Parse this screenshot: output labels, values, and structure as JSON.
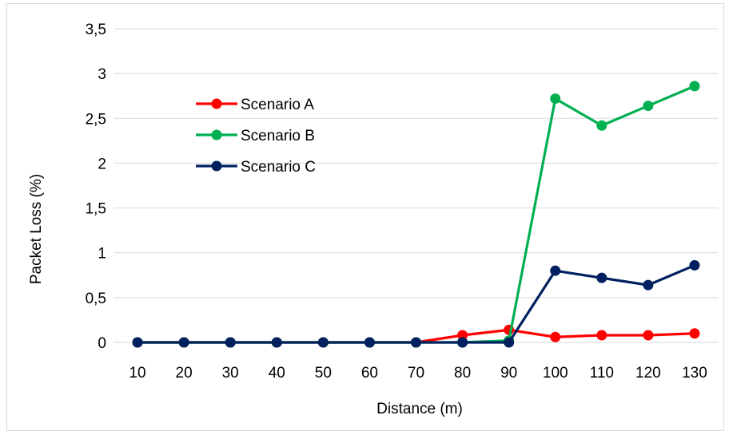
{
  "chart_data": {
    "type": "line",
    "title": "",
    "xlabel": "Distance (m)",
    "ylabel": "Packet Loss (%)",
    "categories": [
      "10",
      "20",
      "30",
      "40",
      "50",
      "60",
      "70",
      "80",
      "90",
      "100",
      "110",
      "120",
      "130"
    ],
    "ylim": [
      0,
      3.5
    ],
    "yticks": [
      "0",
      "0,5",
      "1",
      "1,5",
      "2",
      "2,5",
      "3",
      "3,5"
    ],
    "grid": "horizontal",
    "legend_position": "top-left",
    "series": [
      {
        "name": "Scenario A",
        "color": "#ff0000",
        "values": [
          0,
          0,
          0,
          0,
          0,
          0,
          0,
          0.08,
          0.14,
          0.06,
          0.08,
          0.08,
          0.1
        ]
      },
      {
        "name": "Scenario B",
        "color": "#00b050",
        "values": [
          0,
          0,
          0,
          0,
          0,
          0,
          0,
          0,
          0.02,
          2.72,
          2.42,
          2.64,
          2.86
        ]
      },
      {
        "name": "Scenario C",
        "color": "#002060",
        "values": [
          0,
          0,
          0,
          0,
          0,
          0,
          0,
          0,
          0,
          0.8,
          0.72,
          0.64,
          0.86
        ]
      }
    ]
  }
}
